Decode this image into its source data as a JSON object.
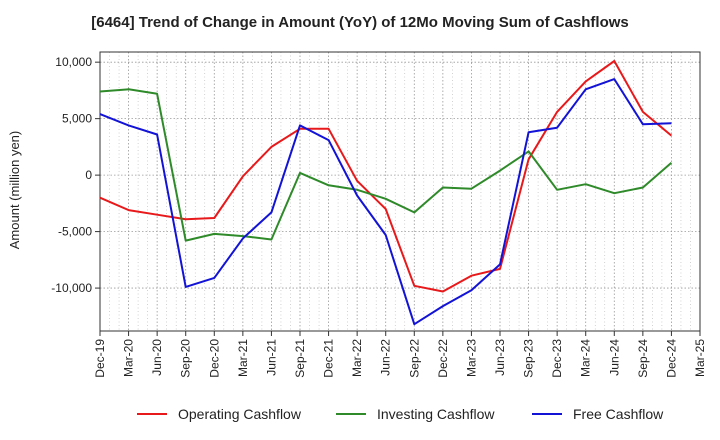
{
  "chart_data": {
    "type": "line",
    "title": "[6464]  Trend of Change in Amount (YoY) of 12Mo Moving Sum of Cashflows",
    "xlabel": "",
    "ylabel": "Amount (million yen)",
    "ylim": [
      -13800,
      10900
    ],
    "yticks": [
      10000,
      5000,
      0,
      -5000,
      -10000
    ],
    "ytick_labels": [
      "10,000",
      "5,000",
      "0",
      "-5,000",
      "-10,000"
    ],
    "categories": [
      "Dec-19",
      "Mar-20",
      "Jun-20",
      "Sep-20",
      "Dec-20",
      "Mar-21",
      "Jun-21",
      "Sep-21",
      "Dec-21",
      "Mar-22",
      "Jun-22",
      "Sep-22",
      "Dec-22",
      "Mar-23",
      "Jun-23",
      "Sep-23",
      "Dec-23",
      "Mar-24",
      "Jun-24",
      "Sep-24",
      "Dec-24",
      "Mar-25"
    ],
    "grid": true,
    "legend_position": "bottom",
    "series": [
      {
        "name": "Operating Cashflow",
        "color": "#e8191b",
        "values": [
          -2000,
          -3100,
          -3500,
          -3900,
          -3800,
          -100,
          2500,
          4100,
          4100,
          -500,
          -3000,
          -9800,
          -10300,
          -8900,
          -8300,
          1400,
          5600,
          8300,
          10100,
          5600,
          3500,
          null
        ]
      },
      {
        "name": "Investing Cashflow",
        "color": "#2f8a2a",
        "values": [
          7400,
          7600,
          7200,
          -5800,
          -5200,
          -5400,
          -5700,
          200,
          -900,
          -1300,
          -2100,
          -3300,
          -1100,
          -1200,
          400,
          2100,
          -1300,
          -800,
          -1600,
          -1100,
          1100,
          null
        ]
      },
      {
        "name": "Free Cashflow",
        "color": "#1313d6",
        "values": [
          5400,
          4400,
          3600,
          -9900,
          -9100,
          -5600,
          -3300,
          4400,
          3100,
          -1800,
          -5300,
          -13200,
          -11600,
          -10200,
          -7900,
          3800,
          4200,
          7600,
          8500,
          4500,
          4600,
          null
        ]
      }
    ]
  }
}
